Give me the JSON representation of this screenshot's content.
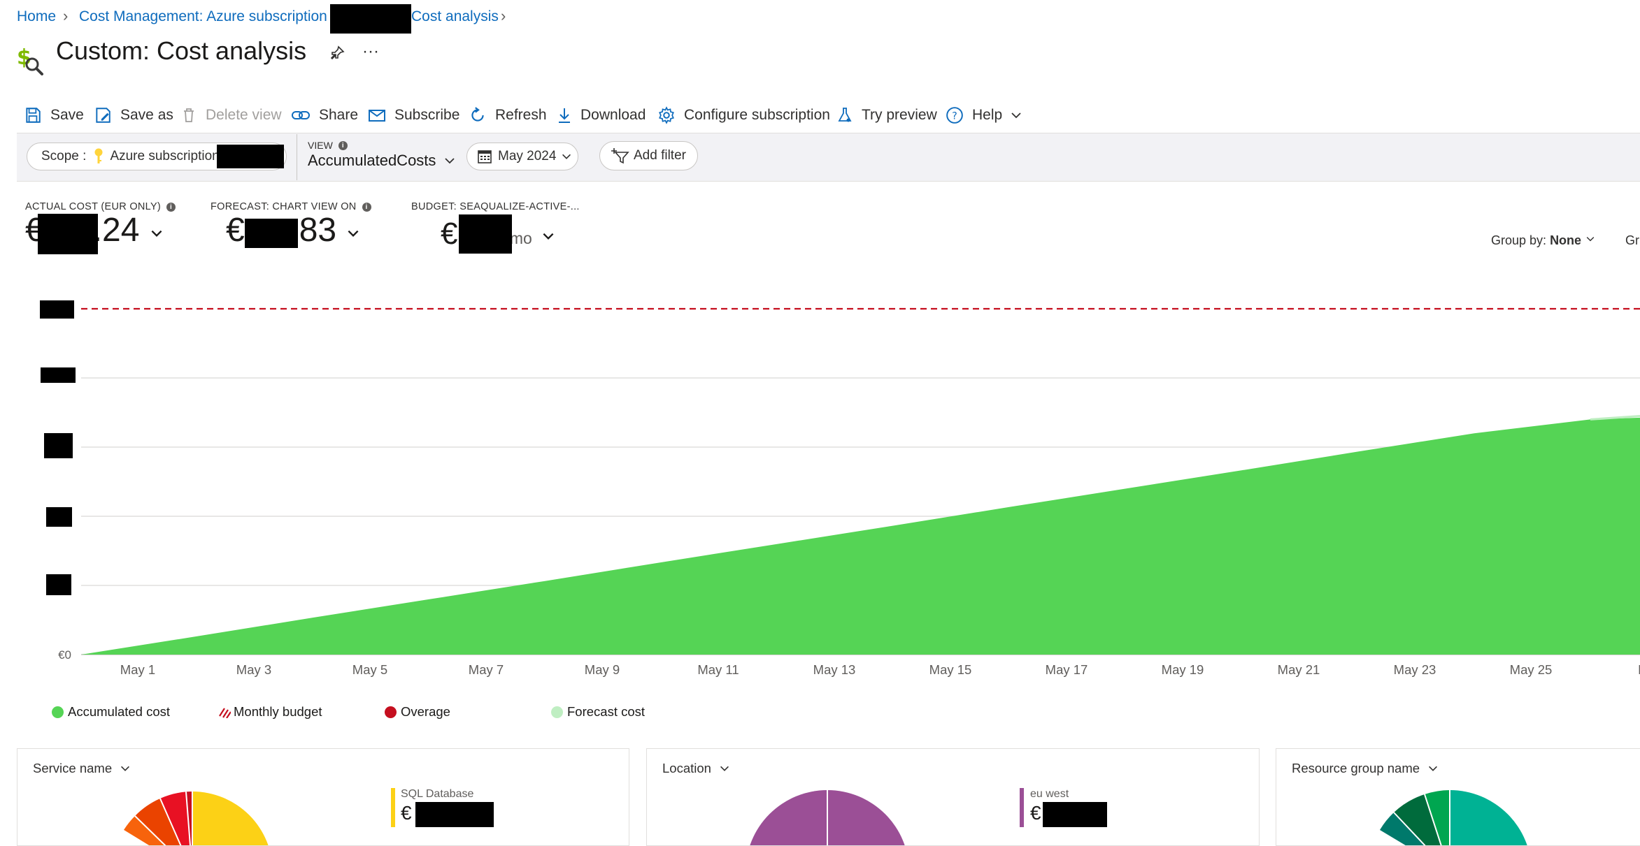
{
  "breadcrumb": {
    "home": "Home",
    "cost_mgmt": "Cost Management: Azure subscription",
    "cost_analysis": "Cost analysis"
  },
  "page": {
    "title": "Custom: Cost analysis"
  },
  "toolbar": {
    "save": "Save",
    "save_as": "Save as",
    "delete_view": "Delete view",
    "share": "Share",
    "subscribe": "Subscribe",
    "refresh": "Refresh",
    "download": "Download",
    "configure": "Configure subscription",
    "try_preview": "Try preview",
    "help": "Help"
  },
  "filters": {
    "scope_label": "Scope :",
    "scope_value": "Azure subscription",
    "view_label": "VIEW",
    "view_value": "AccumulatedCosts",
    "date_value": "May 2024",
    "add_filter": "Add filter"
  },
  "kpis": {
    "actual_label": "ACTUAL COST (EUR ONLY)",
    "actual_prefix": "€",
    "actual_suffix": ".24",
    "forecast_label": "FORECAST: CHART VIEW ON",
    "forecast_prefix": "€",
    "forecast_suffix": "83",
    "budget_label": "BUDGET: SEAQUALIZE-ACTIVE-...",
    "budget_prefix": "€",
    "budget_suffix": "/mo"
  },
  "group_by": {
    "label": "Group by:",
    "value": "None",
    "cut_label": "Gr"
  },
  "chart_data": {
    "type": "area",
    "x": [
      "May 1",
      "May 3",
      "May 5",
      "May 7",
      "May 9",
      "May 11",
      "May 13",
      "May 15",
      "May 17",
      "May 19",
      "May 21",
      "May 23",
      "May 25",
      "Ma"
    ],
    "y_zero_label": "€0",
    "series": [
      {
        "name": "Accumulated cost",
        "rel_values": [
          0,
          0.053,
          0.107,
          0.16,
          0.213,
          0.267,
          0.32,
          0.373,
          0.427,
          0.48,
          0.533,
          0.587,
          0.64,
          0.68
        ]
      }
    ],
    "budget_rel_level": 1.0,
    "grid": true,
    "colors": {
      "accumulated": "#55d455",
      "budget": "#c50f1f",
      "overage": "#c50f1f",
      "forecast": "#bfeec2"
    }
  },
  "legend": {
    "accumulated": "Accumulated cost",
    "budget": "Monthly budget",
    "overage": "Overage",
    "forecast": "Forecast cost"
  },
  "cards": {
    "service": {
      "title": "Service name",
      "legend_label": "SQL Database",
      "currency": "€"
    },
    "location": {
      "title": "Location",
      "legend_label": "eu west",
      "currency": "€"
    },
    "resource_group": {
      "title": "Resource group name"
    }
  }
}
